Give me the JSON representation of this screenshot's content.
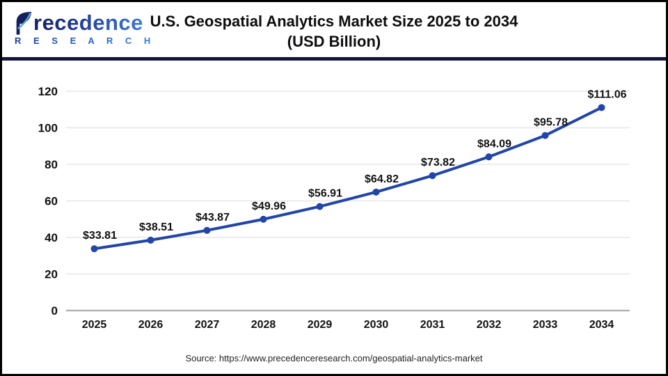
{
  "header": {
    "brand": {
      "name_main": "Precedence",
      "name_sub": "R E S E A R C H"
    },
    "title_line1": "U.S. Geospatial Analytics Market Size 2025 to 2034",
    "title_line2": "(USD Billion)"
  },
  "chart_data": {
    "type": "line",
    "title": "U.S. Geospatial Analytics Market Size 2025 to 2034 (USD Billion)",
    "categories": [
      "2025",
      "2026",
      "2027",
      "2028",
      "2029",
      "2030",
      "2031",
      "2032",
      "2033",
      "2034"
    ],
    "series": [
      {
        "name": "U.S. Geospatial Analytics Market Size (USD Billion)",
        "values": [
          33.81,
          38.51,
          43.87,
          49.96,
          56.91,
          64.82,
          73.82,
          84.09,
          95.78,
          111.06
        ]
      }
    ],
    "point_labels": [
      "$33.81",
      "$38.51",
      "$43.87",
      "$49.96",
      "$56.91",
      "$64.82",
      "$73.82",
      "$84.09",
      "$95.78",
      "$111.06"
    ],
    "xlabel": "",
    "ylabel": "",
    "ylim": [
      0,
      120
    ],
    "yticks": [
      0,
      20,
      40,
      60,
      80,
      100,
      120
    ],
    "grid": true,
    "legend": "none",
    "line_color": "#2145a8",
    "marker": "circle"
  },
  "footer": {
    "source": "Source: https://www.precedenceresearch.com/geospatial-analytics-market"
  },
  "colors": {
    "accent_line": "#2145a8",
    "header_rule": "#14143a",
    "grid_line": "#e7e7e7",
    "axis_line": "#b3b3b3",
    "text": "#111111",
    "brand_dark": "#141f5e",
    "brand_light": "#3f7bd6"
  }
}
